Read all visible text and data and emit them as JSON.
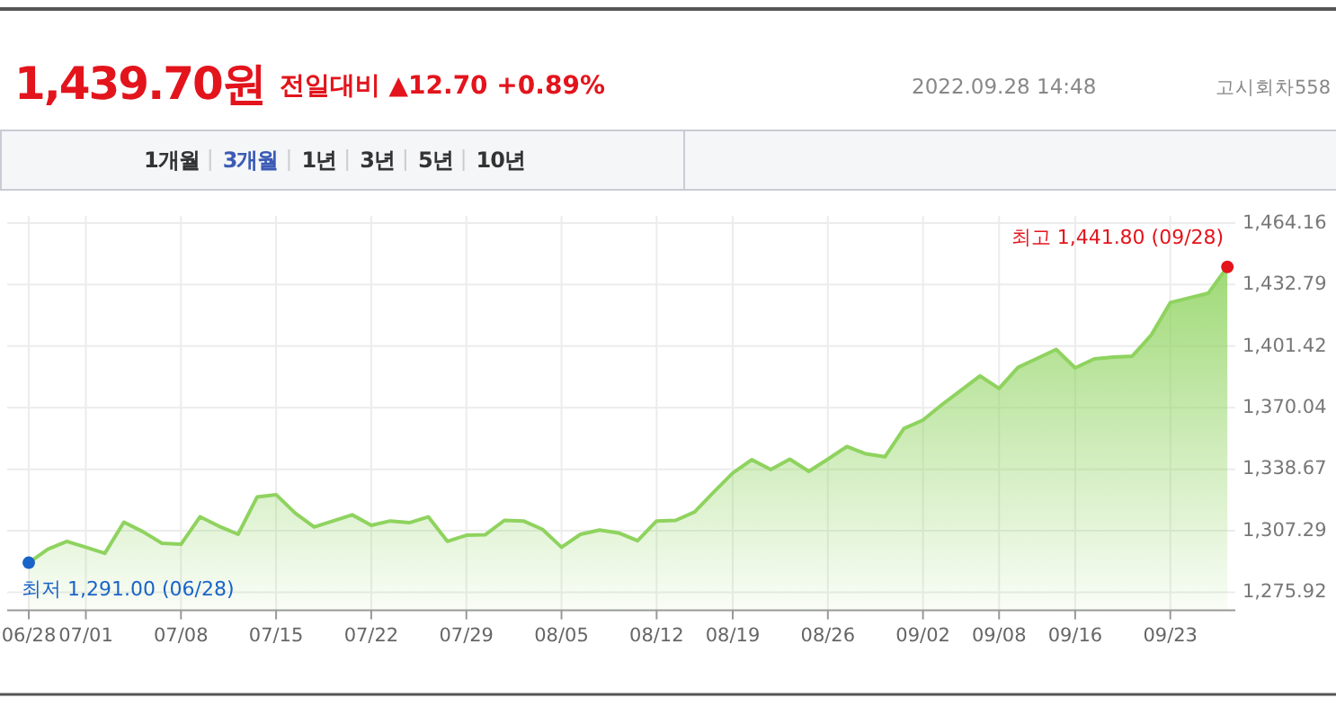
{
  "chart_data": {
    "type": "area",
    "title": "1,439.70원",
    "subtitle": "전일대비 ▲12.70 +0.89%",
    "annotations": [
      "2022.09.28 14:48",
      "고시회차558",
      "1개월",
      "3개월",
      "1년",
      "3년",
      "5년",
      "10년",
      {
        "text": "최저 1,291.00 (06/28)",
        "x": "06/28",
        "y": 1291.0
      },
      "최고 1,441.80 (09/28)"
    ],
    "categories": [
      "06/28",
      null,
      null,
      "07/01",
      null,
      null,
      null,
      null,
      "07/08",
      null,
      null,
      null,
      null,
      "07/15",
      null,
      null,
      null,
      null,
      "07/22",
      null,
      null,
      null,
      null,
      "07/29",
      null,
      null,
      null,
      null,
      "08/05",
      null,
      null,
      null,
      null,
      "08/12",
      null,
      null,
      null,
      "08/19",
      null,
      null,
      null,
      null,
      "08/26",
      null,
      null,
      null,
      null,
      "09/02",
      null,
      null,
      null,
      "09/08",
      null,
      null,
      null,
      "09/16",
      null,
      null,
      null,
      null,
      "09/23",
      null,
      null,
      null
    ],
    "series": [
      {
        "color": "#8fd35f",
        "values": [
          1291.0,
          1297.9,
          1301.9,
          1298.9,
          1295.8,
          1311.7,
          1306.8,
          1300.9,
          1300.4,
          1314.4,
          1309.6,
          1305.5,
          1324.5,
          1325.7,
          1316.3,
          1309.2,
          1312.3,
          1315.4,
          1310.1,
          1312.3,
          1311.4,
          1314.4,
          1301.9,
          1305.0,
          1305.3,
          1312.6,
          1312.3,
          1308.0,
          1298.9,
          1305.5,
          1307.7,
          1306.2,
          1302.2,
          1312.3,
          1312.6,
          1316.9,
          1327.0,
          1336.7,
          1343.5,
          1338.5,
          1343.8,
          1337.6,
          1343.8,
          1350.2,
          1346.5,
          1345.0,
          1359.4,
          1363.7,
          1371.6,
          1378.9,
          1386.2,
          1379.8,
          1390.6,
          1395.1,
          1399.7,
          1390.3,
          1394.9,
          1395.8,
          1396.3,
          1407.1,
          1423.6,
          1426.0,
          1428.4,
          1441.8
        ]
      }
    ],
    "ylim": [
      1266.7,
      1467.8
    ],
    "yticks": [
      {
        "value": 1275.92,
        "label": "1,275.92"
      },
      {
        "value": 1307.29,
        "label": "1,307.29"
      },
      {
        "value": 1338.67,
        "label": "1,338.67"
      },
      {
        "value": 1370.04,
        "label": "1,370.04"
      },
      {
        "value": 1401.42,
        "label": "1,401.42"
      },
      {
        "value": 1432.79,
        "label": "1,432.79"
      },
      {
        "value": 1464.16,
        "label": "1,464.16"
      }
    ],
    "grid": true,
    "marker": "none"
  }
}
